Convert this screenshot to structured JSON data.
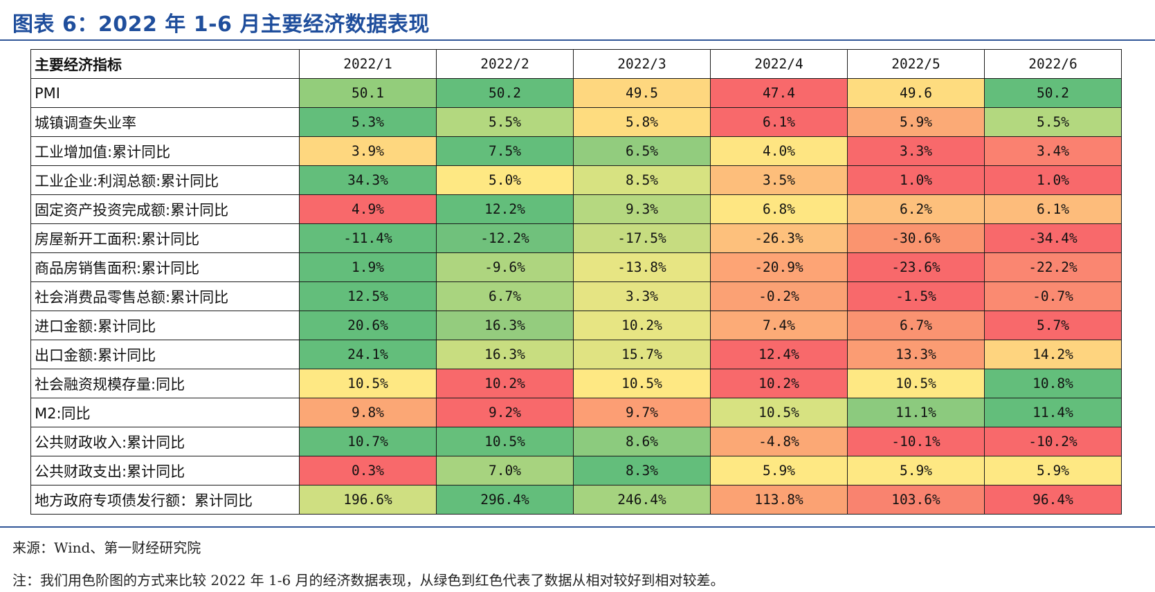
{
  "title": "图表 6：2022 年 1-6 月主要经济数据表现",
  "table": {
    "header_label": "主要经济指标",
    "columns": [
      "2022/1",
      "2022/2",
      "2022/3",
      "2022/4",
      "2022/5",
      "2022/6"
    ],
    "rows": [
      {
        "label": "PMI",
        "values": [
          "50.1",
          "50.2",
          "49.5",
          "47.4",
          "49.6",
          "50.2"
        ],
        "colors": [
          "#93cd7b",
          "#63be7b",
          "#fed77f",
          "#f8696b",
          "#fedc7f",
          "#63be7b"
        ]
      },
      {
        "label": "城镇调查失业率",
        "values": [
          "5.3%",
          "5.5%",
          "5.8%",
          "6.1%",
          "5.9%",
          "5.5%"
        ],
        "colors": [
          "#63be7b",
          "#b3d87f",
          "#fedc7f",
          "#f8696b",
          "#fbaa76",
          "#b3d87f"
        ]
      },
      {
        "label": "工业增加值:累计同比",
        "values": [
          "3.9%",
          "7.5%",
          "6.5%",
          "4.0%",
          "3.3%",
          "3.4%"
        ],
        "colors": [
          "#fed77f",
          "#63be7b",
          "#92cc7e",
          "#fee582",
          "#f8696b",
          "#fa8170"
        ]
      },
      {
        "label": "工业企业:利润总额:累计同比",
        "values": [
          "34.3%",
          "5.0%",
          "8.5%",
          "3.5%",
          "1.0%",
          "1.0%"
        ],
        "colors": [
          "#63be7b",
          "#fee883",
          "#d7e281",
          "#fdbe7b",
          "#f8696b",
          "#f8696b"
        ]
      },
      {
        "label": "固定资产投资完成额:累计同比",
        "values": [
          "4.9%",
          "12.2%",
          "9.3%",
          "6.8%",
          "6.2%",
          "6.1%"
        ],
        "colors": [
          "#f8696b",
          "#63be7b",
          "#b5d880",
          "#fee682",
          "#fdc07c",
          "#fdbc7b"
        ]
      },
      {
        "label": "房屋新开工面积:累计同比",
        "values": [
          "-11.4%",
          "-12.2%",
          "-17.5%",
          "-26.3%",
          "-30.6%",
          "-34.4%"
        ],
        "colors": [
          "#63be7b",
          "#70c17c",
          "#c6dc80",
          "#fdc07c",
          "#fa946f",
          "#f8696b"
        ]
      },
      {
        "label": "商品房销售面积:累计同比",
        "values": [
          "1.9%",
          "-9.6%",
          "-13.8%",
          "-20.9%",
          "-23.6%",
          "-22.2%"
        ],
        "colors": [
          "#63be7b",
          "#aed57f",
          "#e7e583",
          "#fda475",
          "#f8696b",
          "#fa8671"
        ]
      },
      {
        "label": "社会消费品零售总额:累计同比",
        "values": [
          "12.5%",
          "6.7%",
          "3.3%",
          "-0.2%",
          "-1.5%",
          "-0.7%"
        ],
        "colors": [
          "#63be7b",
          "#a9d47f",
          "#e5e483",
          "#fba174",
          "#f8696b",
          "#fa8a71"
        ]
      },
      {
        "label": "进口金额:累计同比",
        "values": [
          "20.6%",
          "16.3%",
          "10.2%",
          "7.4%",
          "6.7%",
          "5.7%"
        ],
        "colors": [
          "#63be7b",
          "#94cc7e",
          "#e7e583",
          "#fcab77",
          "#fa9371",
          "#f8696b"
        ]
      },
      {
        "label": "出口金额:累计同比",
        "values": [
          "24.1%",
          "16.3%",
          "15.7%",
          "12.4%",
          "13.3%",
          "14.2%"
        ],
        "colors": [
          "#63be7b",
          "#c8dd80",
          "#e0e382",
          "#f8696b",
          "#fb9c73",
          "#fed47f"
        ]
      },
      {
        "label": "社会融资规模存量:同比",
        "values": [
          "10.5%",
          "10.2%",
          "10.5%",
          "10.2%",
          "10.5%",
          "10.8%"
        ],
        "colors": [
          "#fee883",
          "#f8696b",
          "#fee883",
          "#f8696b",
          "#fee883",
          "#63be7b"
        ]
      },
      {
        "label": "M2:同比",
        "values": [
          "9.8%",
          "9.2%",
          "9.7%",
          "10.5%",
          "11.1%",
          "11.4%"
        ],
        "colors": [
          "#fba775",
          "#f8696b",
          "#fc9e74",
          "#d7e281",
          "#8cca7e",
          "#63be7b"
        ]
      },
      {
        "label": "公共财政收入:累计同比",
        "values": [
          "10.7%",
          "10.5%",
          "8.6%",
          "-4.8%",
          "-10.1%",
          "-10.2%"
        ],
        "colors": [
          "#63be7b",
          "#66bf7b",
          "#8ccb7e",
          "#fba875",
          "#f8696b",
          "#f8696b"
        ]
      },
      {
        "label": "公共财政支出:累计同比",
        "values": [
          "0.3%",
          "7.0%",
          "8.3%",
          "5.9%",
          "5.9%",
          "5.9%"
        ],
        "colors": [
          "#f8696b",
          "#a7d37f",
          "#63be7b",
          "#fee883",
          "#fee883",
          "#fee883"
        ]
      },
      {
        "label": "地方政府专项债发行额：累计同比",
        "values": [
          "196.6%",
          "296.4%",
          "246.4%",
          "113.8%",
          "103.6%",
          "96.4%"
        ],
        "colors": [
          "#cfdf81",
          "#63be7b",
          "#a5d37f",
          "#fba273",
          "#f9836f",
          "#f8696b"
        ]
      }
    ]
  },
  "source": "来源：Wind、第一财经研究院",
  "note": "注：我们用色阶图的方式来比较 2022 年 1-6 月的经济数据表现，从绿色到红色代表了数据从相对较好到相对较差。"
}
